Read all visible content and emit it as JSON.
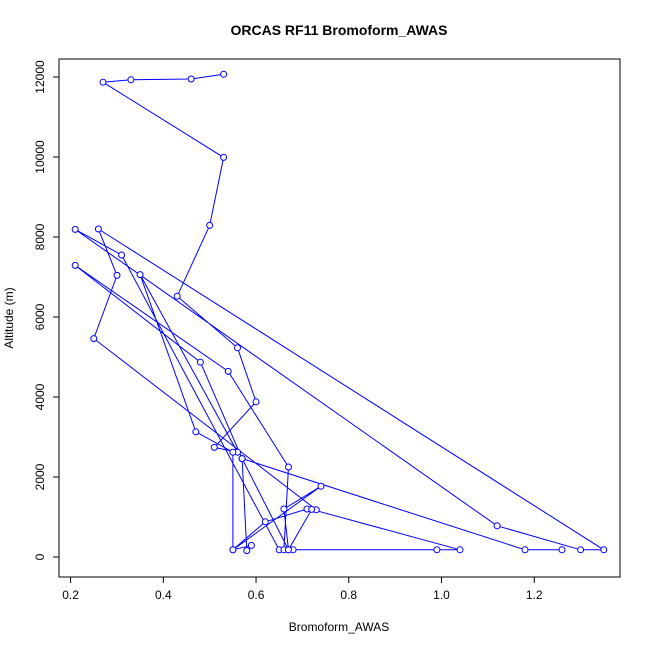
{
  "chart_data": {
    "type": "line",
    "title": "ORCAS RF11 Bromoform_AWAS",
    "xlabel": "Bromoform_AWAS",
    "ylabel": "Altitude (m)",
    "xlim": [
      0.175,
      1.385
    ],
    "ylim": [
      -500,
      12450
    ],
    "xticks": [
      "0.2",
      "0.4",
      "0.6",
      "0.8",
      "1.0",
      "1.2"
    ],
    "xtick_values": [
      0.2,
      0.4,
      0.6,
      0.8,
      1.0,
      1.2
    ],
    "yticks": [
      "0",
      "2000",
      "4000",
      "6000",
      "8000",
      "10000",
      "12000"
    ],
    "ytick_values": [
      0,
      2000,
      4000,
      6000,
      8000,
      10000,
      12000
    ],
    "grid": false,
    "colors": {
      "series": "#0000ff",
      "axis": "#000000"
    },
    "series": [
      {
        "x": [
          0.53,
          0.46,
          0.33,
          0.27,
          0.53,
          0.5,
          0.43,
          0.56,
          0.6,
          0.51,
          0.56,
          0.35,
          0.47,
          0.55,
          0.55,
          0.74,
          0.66,
          0.67,
          0.68,
          0.65,
          0.31,
          0.21,
          1.12,
          1.3,
          1.35,
          0.26,
          0.3,
          0.25,
          0.73,
          0.71,
          0.62,
          0.55,
          0.59,
          0.58,
          0.57,
          0.48,
          0.21,
          0.54,
          0.67,
          0.66,
          0.99,
          1.04,
          0.72,
          0.67,
          0.57,
          1.18,
          1.26
        ],
        "y": [
          12070,
          11950,
          11930,
          11870,
          9990,
          8290,
          6520,
          5230,
          3880,
          2740,
          2620,
          7060,
          3130,
          2620,
          180,
          1770,
          1200,
          180,
          180,
          180,
          7550,
          8190,
          780,
          180,
          180,
          8200,
          7040,
          5460,
          1180,
          1200,
          880,
          180,
          290,
          160,
          2460,
          4870,
          7290,
          4640,
          2250,
          180,
          180,
          180,
          1190,
          180,
          2460,
          180,
          180
        ]
      }
    ]
  }
}
